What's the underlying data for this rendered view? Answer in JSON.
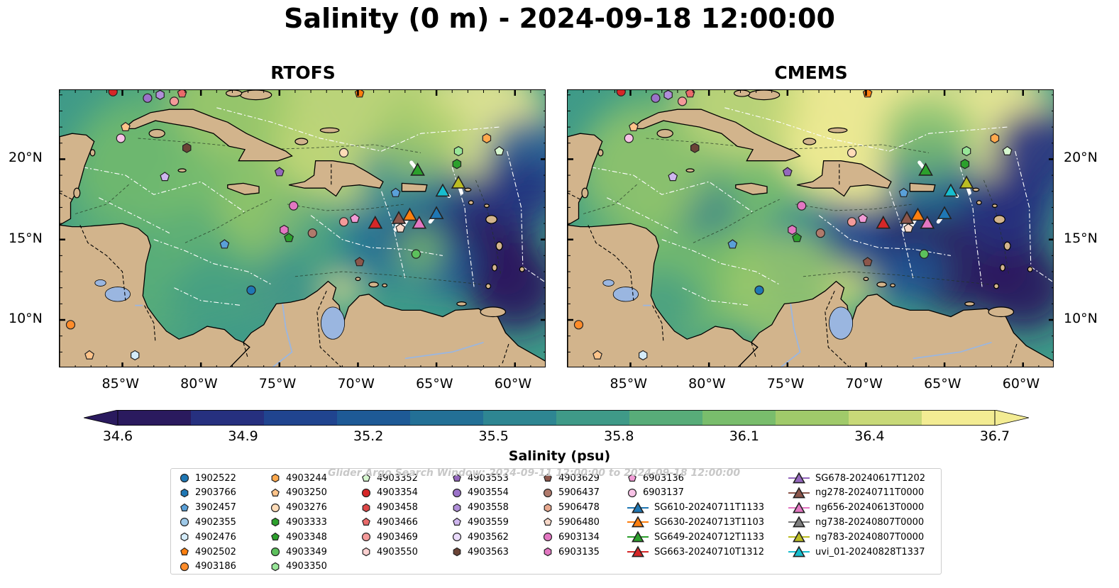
{
  "title": "Salinity (0 m) - 2024-09-18 12:00:00",
  "panels": [
    {
      "title": "RTOFS"
    },
    {
      "title": "CMEMS"
    }
  ],
  "map": {
    "lon_range": [
      -89,
      -58
    ],
    "lat_range": [
      7,
      24.3
    ],
    "lon_ticks": [
      "85°W",
      "80°W",
      "75°W",
      "70°W",
      "65°W",
      "60°W"
    ],
    "lat_ticks": [
      "20°N",
      "15°N",
      "10°N"
    ],
    "land_color": "#d2b48c",
    "lake_color": "#9ab6e0"
  },
  "colorbar": {
    "label": "Salinity (psu)",
    "min": 34.6,
    "max": 36.7,
    "ticks": [
      "34.6",
      "34.9",
      "35.2",
      "35.5",
      "35.8",
      "36.1",
      "36.4",
      "36.7"
    ],
    "colors": [
      "#2a1a5e",
      "#26307f",
      "#20448f",
      "#1e5a96",
      "#237096",
      "#2e8692",
      "#3f9a88",
      "#58ac79",
      "#79bd6c",
      "#a0ca6a",
      "#c8d978",
      "#f3ec93"
    ]
  },
  "watermark": "Glider Argo Search Window: 2024-09-11 12:00:00 to 2024-09-18 12:00:00",
  "legend": {
    "columns": [
      [
        {
          "label": "1902522",
          "marker": "circle",
          "color": "#1f77b4"
        },
        {
          "label": "2903766",
          "marker": "hexagon",
          "color": "#1f77b4"
        },
        {
          "label": "3902457",
          "marker": "pentagon",
          "color": "#5aa0d8"
        },
        {
          "label": "4902355",
          "marker": "circle",
          "color": "#9ec9e8"
        },
        {
          "label": "4902476",
          "marker": "hexagon",
          "color": "#d4ecfa"
        },
        {
          "label": "4902502",
          "marker": "pentagon",
          "color": "#ff7f0e"
        },
        {
          "label": "4903186",
          "marker": "circle",
          "color": "#ff8c2a"
        }
      ],
      [
        {
          "label": "4903244",
          "marker": "hexagon",
          "color": "#ffa94d"
        },
        {
          "label": "4903250",
          "marker": "pentagon",
          "color": "#ffc48a"
        },
        {
          "label": "4903276",
          "marker": "circle",
          "color": "#ffdcb8"
        },
        {
          "label": "4903333",
          "marker": "hexagon",
          "color": "#2ca02c"
        },
        {
          "label": "4903348",
          "marker": "pentagon",
          "color": "#2ca02c"
        },
        {
          "label": "4903349",
          "marker": "circle",
          "color": "#5cc05c"
        },
        {
          "label": "4903350",
          "marker": "hexagon",
          "color": "#98e698"
        }
      ],
      [
        {
          "label": "4903352",
          "marker": "pentagon",
          "color": "#d6f7cf"
        },
        {
          "label": "4903354",
          "marker": "circle",
          "color": "#d62728"
        },
        {
          "label": "4903458",
          "marker": "hexagon",
          "color": "#de4747"
        },
        {
          "label": "4903466",
          "marker": "pentagon",
          "color": "#ea6a6a"
        },
        {
          "label": "4903469",
          "marker": "circle",
          "color": "#f49a9a"
        },
        {
          "label": "4903550",
          "marker": "hexagon",
          "color": "#fbd0d0"
        }
      ],
      [
        {
          "label": "4903553",
          "marker": "pentagon",
          "color": "#9467bd"
        },
        {
          "label": "4903554",
          "marker": "circle",
          "color": "#9b72c9"
        },
        {
          "label": "4903558",
          "marker": "hexagon",
          "color": "#b08fd9"
        },
        {
          "label": "4903559",
          "marker": "pentagon",
          "color": "#cfb6ef"
        },
        {
          "label": "4903562",
          "marker": "circle",
          "color": "#eadbfb"
        },
        {
          "label": "4903563",
          "marker": "hexagon",
          "color": "#6b4436"
        }
      ],
      [
        {
          "label": "4903629",
          "marker": "pentagon",
          "color": "#8c564b"
        },
        {
          "label": "5906437",
          "marker": "circle",
          "color": "#b07a6c"
        },
        {
          "label": "5906478",
          "marker": "hexagon",
          "color": "#e8a98f"
        },
        {
          "label": "5906480",
          "marker": "pentagon",
          "color": "#f8d8c8"
        },
        {
          "label": "6903134",
          "marker": "circle",
          "color": "#e377c2"
        },
        {
          "label": "6903135",
          "marker": "hexagon",
          "color": "#e377c2"
        }
      ],
      [
        {
          "label": "6903136",
          "marker": "pentagon",
          "color": "#f29bd6"
        },
        {
          "label": "6903137",
          "marker": "circle",
          "color": "#f7c2e6"
        },
        {
          "label": "SG610-20240711T1133",
          "marker": "triangle",
          "color": "#1f77b4"
        },
        {
          "label": "SG630-20240713T1103",
          "marker": "triangle",
          "color": "#ff7f0e"
        },
        {
          "label": "SG649-20240712T1133",
          "marker": "triangle",
          "color": "#2ca02c"
        },
        {
          "label": "SG663-20240710T1312",
          "marker": "triangle",
          "color": "#d62728"
        }
      ],
      [
        {
          "label": "SG678-20240617T1202",
          "marker": "triangle",
          "color": "#9467bd"
        },
        {
          "label": "ng278-20240711T0000",
          "marker": "triangle",
          "color": "#8c564b"
        },
        {
          "label": "ng656-20240613T0000",
          "marker": "triangle",
          "color": "#e377c2"
        },
        {
          "label": "ng738-20240807T0000",
          "marker": "triangle",
          "color": "#7f7f7f"
        },
        {
          "label": "ng783-20240807T0000",
          "marker": "triangle",
          "color": "#bcbd22"
        },
        {
          "label": "uvi_01-20240828T1337",
          "marker": "triangle",
          "color": "#17becf"
        }
      ]
    ]
  }
}
